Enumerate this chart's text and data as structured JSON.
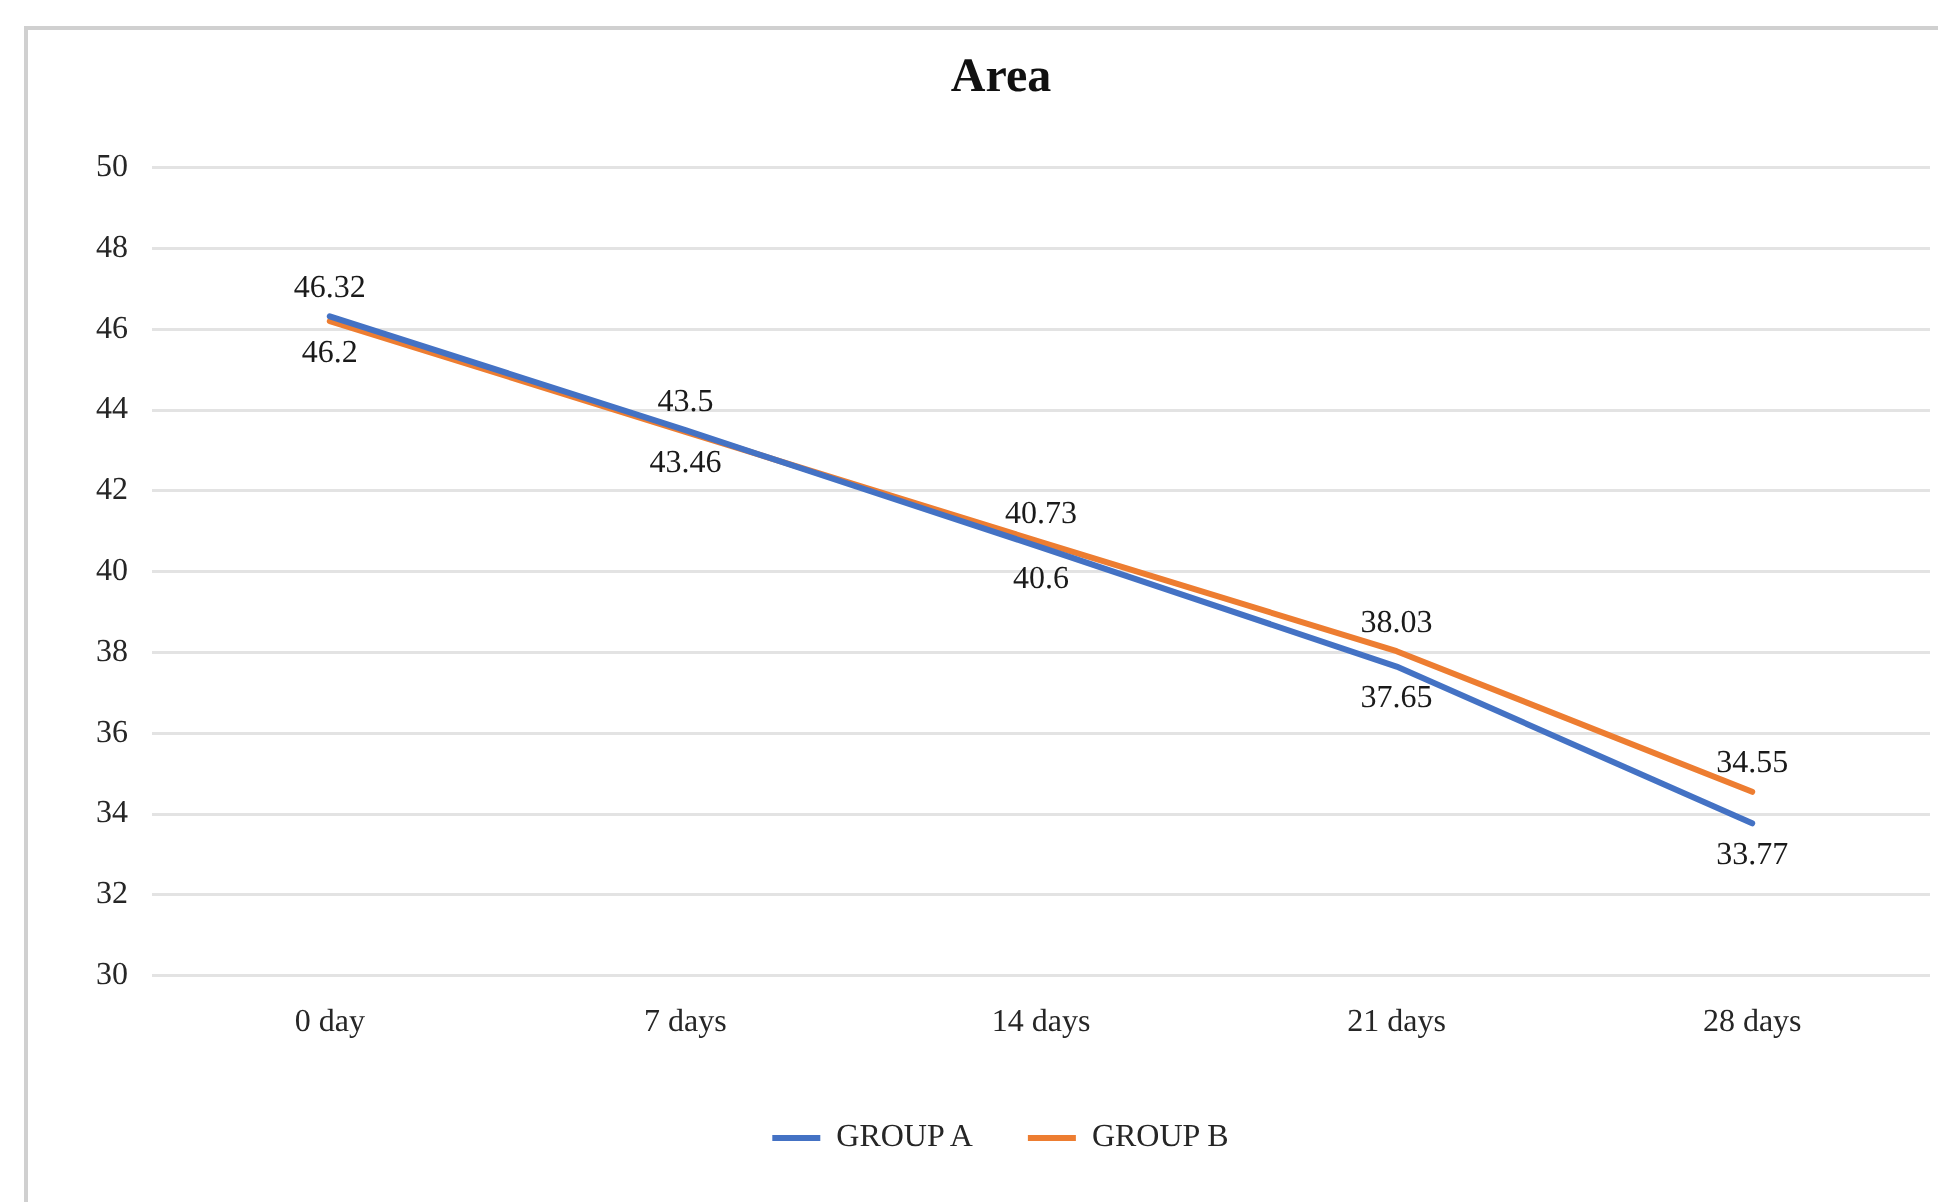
{
  "chart_data": {
    "type": "line",
    "title": "Area",
    "categories": [
      "0 day",
      "7 days",
      "14 days",
      "21 days",
      "28 days"
    ],
    "series": [
      {
        "name": "GROUP A",
        "color": "#4472c4",
        "values": [
          46.32,
          43.5,
          40.6,
          37.65,
          33.77
        ]
      },
      {
        "name": "GROUP B",
        "color": "#ed7d31",
        "values": [
          46.2,
          43.46,
          40.73,
          38.03,
          34.55
        ]
      }
    ],
    "ylim": [
      30,
      50
    ],
    "yticks": [
      30,
      32,
      34,
      36,
      38,
      40,
      42,
      44,
      46,
      48,
      50
    ],
    "grid": "y",
    "legend": "bottom",
    "data_labels": true
  }
}
